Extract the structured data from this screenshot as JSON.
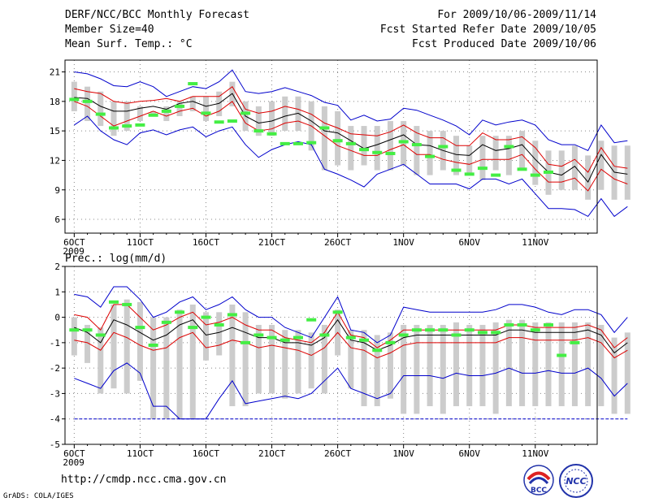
{
  "header": {
    "title": "DERF/NCC/BCC Monthly Forecast",
    "member_size": "Member Size=40",
    "variable": "Mean Surf. Temp.: °C",
    "forecast_period": "For 2009/10/06-2009/11/14",
    "fcst_started": "Fcst Started Refer Date 2009/10/05",
    "fcst_produced": "Fcst Produced Date 2009/10/06"
  },
  "footer": {
    "url": "http://cmdp.ncc.cma.gov.cn",
    "grads": "GrADS: COLA/IGES",
    "logo_bcc": "BCC",
    "logo_ncc": "NCC"
  },
  "colors": {
    "max_min_line": "#0000cc",
    "quartile_line": "#dd0000",
    "median_line": "#000000",
    "box": "#cccccc",
    "obs": "#44ee44",
    "grid": "#888888"
  },
  "chart_data": [
    {
      "type": "box-ensemble",
      "title": "Mean Surf. Temp.: °C",
      "ylabel": "Mean Surf. Temp.: °C",
      "ylim": [
        4.6,
        22.2
      ],
      "yticks": [
        6,
        9,
        12,
        15,
        18,
        21
      ],
      "xticks": [
        {
          "day": 1,
          "label": "6OCT",
          "sub": "2009"
        },
        {
          "day": 6,
          "label": "11OCT"
        },
        {
          "day": 11,
          "label": "16OCT"
        },
        {
          "day": 16,
          "label": "21OCT"
        },
        {
          "day": 21,
          "label": "26OCT"
        },
        {
          "day": 26,
          "label": "1NOV"
        },
        {
          "day": 31,
          "label": "6NOV"
        },
        {
          "day": 36,
          "label": "11NOV"
        }
      ],
      "xlim": [
        0.3,
        40.7
      ],
      "grid": true,
      "series": [
        {
          "name": "max",
          "values": [
            21.0,
            20.8,
            20.3,
            19.6,
            19.5,
            20.0,
            19.5,
            18.5,
            19.0,
            19.5,
            19.3,
            20.0,
            21.2,
            19.0,
            18.8,
            19.0,
            19.4,
            19.0,
            18.6,
            17.9,
            17.6,
            16.1,
            16.6,
            16.0,
            16.2,
            17.3,
            17.1,
            16.6,
            16.1,
            15.5,
            14.6,
            16.1,
            15.6,
            15.9,
            16.1,
            15.6,
            14.1,
            13.6,
            13.6,
            13.0,
            15.6,
            13.8,
            14.0
          ]
        },
        {
          "name": "q3",
          "values": [
            19.3,
            19.0,
            18.8,
            18.0,
            17.8,
            18.0,
            18.1,
            18.3,
            18.0,
            18.5,
            18.5,
            18.5,
            19.5,
            17.2,
            16.8,
            17.0,
            17.5,
            17.2,
            16.7,
            15.8,
            15.3,
            14.7,
            14.6,
            14.5,
            14.9,
            15.6,
            14.8,
            14.3,
            14.3,
            13.5,
            13.5,
            14.8,
            14.1,
            14.1,
            14.4,
            13.3,
            11.6,
            11.4,
            12.1,
            10.8,
            13.3,
            11.4,
            11.2
          ]
        },
        {
          "name": "median",
          "values": [
            18.4,
            18.3,
            17.5,
            17.0,
            17.0,
            17.3,
            17.5,
            17.2,
            17.8,
            18.0,
            17.5,
            17.8,
            18.8,
            16.5,
            15.8,
            16.0,
            16.5,
            16.8,
            16.0,
            15.0,
            14.8,
            14.0,
            13.2,
            13.6,
            14.1,
            14.6,
            13.6,
            13.5,
            13.0,
            12.6,
            12.5,
            13.6,
            13.0,
            13.2,
            13.6,
            12.1,
            10.8,
            10.5,
            11.4,
            9.8,
            12.6,
            10.8,
            10.6
          ]
        },
        {
          "name": "q1",
          "values": [
            18.0,
            17.5,
            16.5,
            15.5,
            16.0,
            16.5,
            17.0,
            16.5,
            17.0,
            17.3,
            16.5,
            17.0,
            18.0,
            15.8,
            15.0,
            15.2,
            15.8,
            16.0,
            15.5,
            14.5,
            13.5,
            13.0,
            12.5,
            12.5,
            13.1,
            13.6,
            12.6,
            12.6,
            12.1,
            11.8,
            11.6,
            12.1,
            12.1,
            12.1,
            12.6,
            11.1,
            9.8,
            9.8,
            10.2,
            8.9,
            11.1,
            10.1,
            9.6
          ]
        },
        {
          "name": "min",
          "values": [
            15.6,
            16.5,
            15.0,
            14.1,
            13.6,
            14.8,
            15.1,
            14.6,
            15.1,
            15.4,
            14.4,
            15.0,
            15.4,
            13.6,
            12.3,
            13.1,
            13.6,
            13.9,
            13.6,
            11.1,
            10.6,
            10.0,
            9.3,
            10.6,
            11.1,
            11.6,
            10.6,
            9.6,
            9.6,
            9.6,
            9.1,
            10.1,
            10.1,
            9.6,
            10.1,
            8.6,
            7.1,
            7.1,
            7.0,
            6.3,
            8.1,
            6.3,
            7.3
          ]
        },
        {
          "name": "box_upper",
          "values": [
            20.0,
            19.5,
            19.0,
            18.0,
            18.0,
            17.5,
            17.0,
            17.5,
            18.0,
            18.5,
            18.5,
            19.0,
            20.0,
            18.0,
            17.5,
            18.0,
            18.5,
            18.5,
            18.0,
            17.5,
            17.0,
            15.5,
            15.5,
            15.5,
            16.0,
            16.0,
            15.5,
            15.0,
            15.0,
            14.5,
            13.5,
            14.5,
            14.5,
            14.5,
            15.0,
            14.0,
            13.0,
            13.0,
            13.5,
            12.5,
            14.0,
            13.5,
            13.5
          ]
        },
        {
          "name": "box_lower",
          "values": [
            17.0,
            16.0,
            15.5,
            14.5,
            15.0,
            16.0,
            16.5,
            16.0,
            16.5,
            17.0,
            16.0,
            16.5,
            17.5,
            15.0,
            14.5,
            14.5,
            15.0,
            15.0,
            13.0,
            11.0,
            11.5,
            11.0,
            11.5,
            11.0,
            11.0,
            11.5,
            10.5,
            10.5,
            11.0,
            10.5,
            10.5,
            10.0,
            11.0,
            10.5,
            11.0,
            9.5,
            8.5,
            9.0,
            9.0,
            8.0,
            9.0,
            8.0,
            8.0
          ]
        },
        {
          "name": "obs",
          "values": [
            18.2,
            18.0,
            16.7,
            15.3,
            15.5,
            15.6,
            16.6,
            17.0,
            17.5,
            19.8,
            16.8,
            15.9,
            16.0,
            16.8,
            15.0,
            14.7,
            13.7,
            13.7,
            13.8,
            15.3,
            14.0,
            13.7,
            13.1,
            12.8,
            12.7,
            13.9,
            13.6,
            12.4,
            13.4,
            11.0,
            10.6,
            11.2,
            10.5,
            13.4,
            11.1,
            10.5,
            10.8
          ]
        }
      ]
    },
    {
      "type": "box-ensemble",
      "title": "Prec.: log(mm/d)",
      "ylabel": "Prec.: log(mm/d)",
      "ylim": [
        -5,
        2
      ],
      "yticks": [
        -5,
        -4,
        -3,
        -2,
        -1,
        0,
        1,
        2
      ],
      "xticks": [
        {
          "day": 1,
          "label": "6OCT",
          "sub": "2009"
        },
        {
          "day": 6,
          "label": "11OCT"
        },
        {
          "day": 11,
          "label": "16OCT"
        },
        {
          "day": 16,
          "label": "21OCT"
        },
        {
          "day": 21,
          "label": "26OCT"
        },
        {
          "day": 26,
          "label": "1NOV"
        },
        {
          "day": 31,
          "label": "6NOV"
        },
        {
          "day": 36,
          "label": "11NOV"
        }
      ],
      "xlim": [
        0.3,
        40.7
      ],
      "grid": true,
      "series": [
        {
          "name": "max",
          "values": [
            0.9,
            0.8,
            0.4,
            1.2,
            1.2,
            0.7,
            0.0,
            0.2,
            0.6,
            0.8,
            0.3,
            0.5,
            0.8,
            0.3,
            0.0,
            0.0,
            -0.4,
            -0.6,
            -0.8,
            0.0,
            0.8,
            -0.5,
            -0.6,
            -1.0,
            -0.7,
            0.4,
            0.3,
            0.2,
            0.2,
            0.2,
            0.2,
            0.2,
            0.3,
            0.5,
            0.5,
            0.4,
            0.2,
            0.1,
            0.3,
            0.3,
            0.1,
            -0.6,
            0.0
          ]
        },
        {
          "name": "q3",
          "values": [
            0.1,
            0.0,
            -0.5,
            0.5,
            0.5,
            0.0,
            -0.5,
            -0.3,
            0.0,
            0.2,
            -0.3,
            -0.2,
            0.0,
            -0.3,
            -0.5,
            -0.5,
            -0.8,
            -0.9,
            -1.0,
            -0.6,
            0.2,
            -0.7,
            -0.8,
            -1.2,
            -0.9,
            -0.5,
            -0.5,
            -0.5,
            -0.5,
            -0.5,
            -0.5,
            -0.5,
            -0.5,
            -0.3,
            -0.3,
            -0.4,
            -0.4,
            -0.4,
            -0.4,
            -0.3,
            -0.5,
            -1.2,
            -0.8
          ]
        },
        {
          "name": "median",
          "values": [
            -0.4,
            -0.6,
            -1.0,
            -0.1,
            -0.3,
            -0.6,
            -0.9,
            -0.7,
            -0.3,
            -0.1,
            -0.7,
            -0.6,
            -0.4,
            -0.6,
            -0.8,
            -0.8,
            -1.0,
            -1.0,
            -1.1,
            -0.8,
            -0.1,
            -0.9,
            -1.0,
            -1.3,
            -1.1,
            -0.8,
            -0.7,
            -0.7,
            -0.7,
            -0.7,
            -0.7,
            -0.7,
            -0.7,
            -0.5,
            -0.5,
            -0.6,
            -0.6,
            -0.6,
            -0.6,
            -0.5,
            -0.7,
            -1.4,
            -1.0
          ]
        },
        {
          "name": "q1",
          "values": [
            -0.9,
            -1.0,
            -1.3,
            -0.6,
            -0.8,
            -1.1,
            -1.3,
            -1.2,
            -0.8,
            -0.6,
            -1.2,
            -1.1,
            -0.9,
            -1.0,
            -1.2,
            -1.1,
            -1.2,
            -1.3,
            -1.5,
            -1.2,
            -0.6,
            -1.2,
            -1.3,
            -1.6,
            -1.4,
            -1.1,
            -1.0,
            -1.0,
            -1.0,
            -1.0,
            -1.0,
            -1.0,
            -1.0,
            -0.8,
            -0.8,
            -0.9,
            -0.9,
            -0.9,
            -0.9,
            -0.8,
            -1.0,
            -1.6,
            -1.3
          ]
        },
        {
          "name": "min",
          "values": [
            -2.4,
            -2.6,
            -2.8,
            -2.1,
            -1.8,
            -2.2,
            -3.5,
            -3.5,
            -4.0,
            -4.0,
            -4.0,
            -3.2,
            -2.5,
            -3.4,
            -3.3,
            -3.2,
            -3.1,
            -3.2,
            -3.0,
            -2.5,
            -2.0,
            -2.8,
            -3.0,
            -3.2,
            -3.0,
            -2.3,
            -2.3,
            -2.3,
            -2.4,
            -2.2,
            -2.3,
            -2.3,
            -2.2,
            -2.0,
            -2.2,
            -2.2,
            -2.1,
            -2.2,
            -2.2,
            -2.0,
            -2.4,
            -3.1,
            -2.6
          ]
        },
        {
          "name": "lower_bound",
          "values": [
            -4.0,
            -4.0,
            -4.0,
            -4.0,
            -4.0,
            -4.0,
            -4.0,
            -4.0,
            -4.0,
            -4.0,
            -4.0,
            -4.0,
            -4.0,
            -4.0,
            -4.0,
            -4.0,
            -4.0,
            -4.0,
            -4.0,
            -4.0,
            -4.0,
            -4.0,
            -4.0,
            -4.0,
            -4.0,
            -4.0,
            -4.0,
            -4.0,
            -4.0,
            -4.0,
            -4.0,
            -4.0,
            -4.0,
            -4.0,
            -4.0,
            -4.0,
            -4.0,
            -4.0,
            -4.0,
            -4.0,
            -4.0,
            -4.0,
            -4.0
          ]
        },
        {
          "name": "box_upper",
          "values": [
            0.0,
            -0.3,
            -0.4,
            0.5,
            0.7,
            0.6,
            0.0,
            0.0,
            0.3,
            0.5,
            0.2,
            0.2,
            0.5,
            0.2,
            -0.3,
            -0.3,
            -0.5,
            -0.5,
            -0.6,
            -0.3,
            0.3,
            -0.5,
            -0.5,
            -0.7,
            -0.6,
            -0.3,
            -0.3,
            -0.3,
            -0.3,
            -0.2,
            -0.3,
            -0.3,
            -0.2,
            -0.1,
            -0.1,
            -0.2,
            -0.2,
            -0.2,
            -0.2,
            -0.2,
            -0.3,
            -0.8,
            -0.6
          ]
        },
        {
          "name": "box_lower",
          "values": [
            -1.5,
            -1.8,
            -3.0,
            -2.8,
            -3.0,
            -2.5,
            -4.0,
            -4.0,
            -4.0,
            -4.0,
            -1.7,
            -1.5,
            -3.5,
            -3.5,
            -3.0,
            -3.0,
            -3.2,
            -3.0,
            -2.8,
            -3.0,
            -1.5,
            -2.8,
            -3.5,
            -3.5,
            -3.2,
            -3.8,
            -3.8,
            -3.5,
            -3.8,
            -3.5,
            -3.5,
            -3.5,
            -3.8,
            -3.5,
            -3.5,
            -3.5,
            -3.5,
            -3.5,
            -3.5,
            -3.5,
            -3.5,
            -3.8,
            -3.8
          ]
        },
        {
          "name": "obs",
          "values": [
            -0.5,
            -0.5,
            -0.7,
            0.6,
            0.5,
            -0.4,
            -1.1,
            -0.2,
            0.2,
            -0.4,
            0.0,
            -0.3,
            0.1,
            -1.0,
            -0.7,
            -0.8,
            -0.9,
            -0.8,
            -0.1,
            -0.7,
            0.2,
            -0.8,
            -0.9,
            -1.3,
            -1.0,
            -0.7,
            -0.5,
            -0.5,
            -0.5,
            -0.7,
            -0.5,
            -0.6,
            -0.6,
            -0.3,
            -0.3,
            -0.5,
            -0.3,
            -1.5,
            -1.0
          ]
        }
      ]
    }
  ]
}
